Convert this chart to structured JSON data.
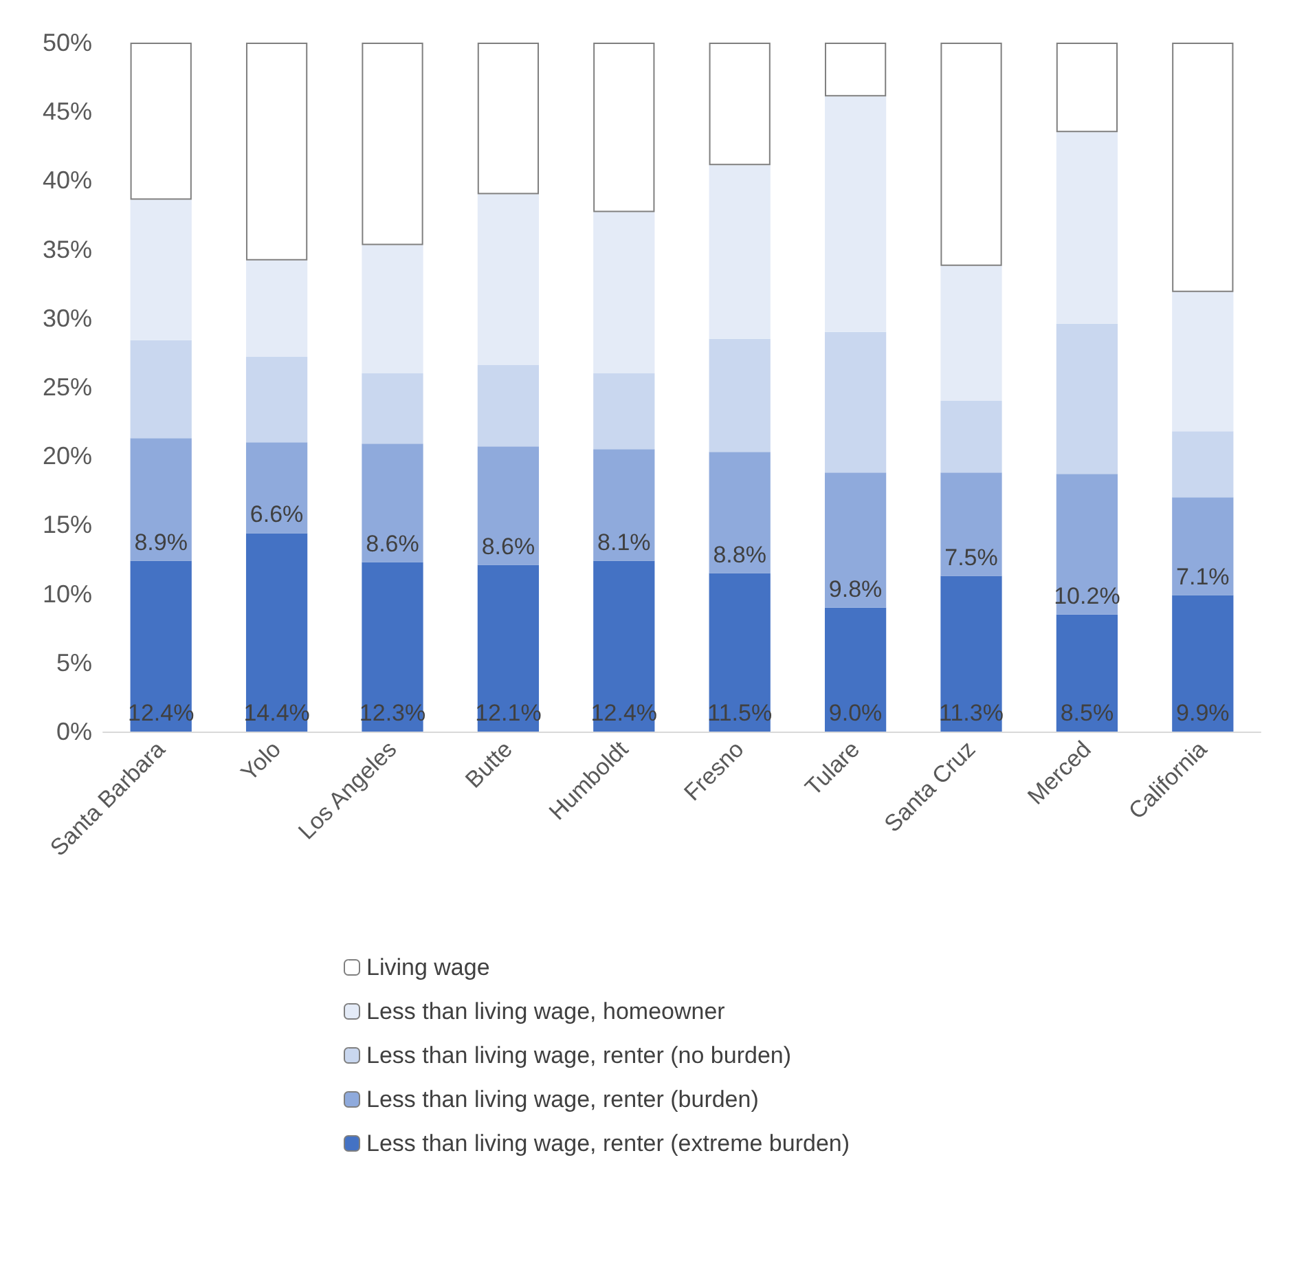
{
  "chart_data": {
    "type": "bar",
    "stacked": true,
    "categories": [
      "Santa Barbara",
      "Yolo",
      "Los Angeles",
      "Butte",
      "Humboldt",
      "Fresno",
      "Tulare",
      "Santa Cruz",
      "Merced",
      "California"
    ],
    "series": [
      {
        "name": "Less than living wage, renter (extreme burden)",
        "color": "#4472c4",
        "values": [
          12.4,
          14.4,
          12.3,
          12.1,
          12.4,
          11.5,
          9.0,
          11.3,
          8.5,
          9.9
        ],
        "value_labels": [
          "12.4%",
          "14.4%",
          "12.3%",
          "12.1%",
          "12.4%",
          "11.5%",
          "9.0%",
          "11.3%",
          "8.5%",
          "9.9%"
        ]
      },
      {
        "name": "Less than living wage, renter (burden)",
        "color": "#8faadc",
        "values": [
          8.9,
          6.6,
          8.6,
          8.6,
          8.1,
          8.8,
          9.8,
          7.5,
          10.2,
          7.1
        ],
        "value_labels": [
          "8.9%",
          "6.6%",
          "8.6%",
          "8.6%",
          "8.1%",
          "8.8%",
          "9.8%",
          "7.5%",
          "10.2%",
          "7.1%"
        ]
      },
      {
        "name": "Less than living wage, renter (no burden)",
        "color": "#c9d7ef",
        "values": [
          7.1,
          6.2,
          5.1,
          5.9,
          5.5,
          8.2,
          10.2,
          5.2,
          10.9,
          4.8
        ]
      },
      {
        "name": "Less than living wage, homeowner",
        "color": "#e4ebf7",
        "values": [
          10.2,
          7.0,
          9.3,
          12.4,
          11.7,
          12.6,
          17.1,
          9.8,
          13.9,
          10.1
        ]
      },
      {
        "name": "Living wage",
        "color": "#ffffff",
        "values": [
          11.4,
          15.8,
          14.7,
          11.0,
          12.3,
          8.9,
          3.9,
          16.2,
          6.5,
          18.1
        ]
      }
    ],
    "ylim": [
      0,
      50
    ],
    "yticks": [
      {
        "value": 0,
        "label": "0%"
      },
      {
        "value": 5,
        "label": "5%"
      },
      {
        "value": 10,
        "label": "10%"
      },
      {
        "value": 15,
        "label": "15%"
      },
      {
        "value": 20,
        "label": "20%"
      },
      {
        "value": 25,
        "label": "25%"
      },
      {
        "value": 30,
        "label": "30%"
      },
      {
        "value": 35,
        "label": "35%"
      },
      {
        "value": 40,
        "label": "40%"
      },
      {
        "value": 45,
        "label": "45%"
      },
      {
        "value": 50,
        "label": "50%"
      }
    ],
    "grid": false,
    "legend": "bottom"
  }
}
